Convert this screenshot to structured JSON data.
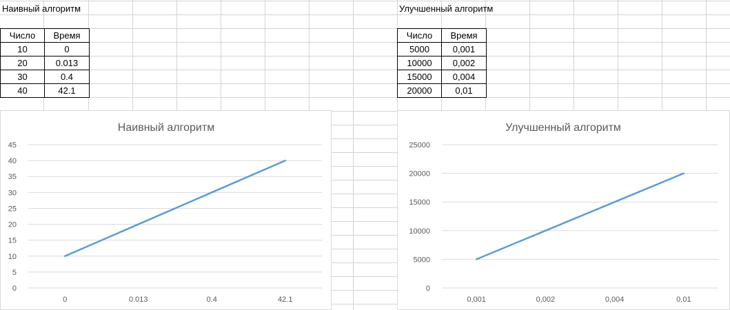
{
  "sheet": {
    "left_title": "Наивный алгоритм",
    "right_title": "Улучшенный алгоритм"
  },
  "tables": {
    "naive": {
      "headers": [
        "Число",
        "Время"
      ],
      "rows": [
        [
          "10",
          "0"
        ],
        [
          "20",
          "0.013"
        ],
        [
          "30",
          "0.4"
        ],
        [
          "40",
          "42.1"
        ]
      ]
    },
    "improved": {
      "headers": [
        "Число",
        "Время"
      ],
      "rows": [
        [
          "5000",
          "0,001"
        ],
        [
          "10000",
          "0,002"
        ],
        [
          "15000",
          "0,004"
        ],
        [
          "20000",
          "0,01"
        ]
      ]
    }
  },
  "colors": {
    "series": "#5B9BD5",
    "gridline": "#d9d9d9",
    "axis_text": "#595959",
    "cell_border": "#d4d4d4"
  },
  "chart_data": [
    {
      "type": "line",
      "title": "Наивный алгоритм",
      "categories": [
        "0",
        "0.013",
        "0.4",
        "42.1"
      ],
      "series": [
        {
          "values": [
            10,
            20,
            30,
            40
          ]
        }
      ],
      "yticks": [
        "0",
        "5",
        "10",
        "15",
        "20",
        "25",
        "30",
        "35",
        "40",
        "45"
      ],
      "ylim": [
        0,
        45
      ],
      "grid": true
    },
    {
      "type": "line",
      "title": "Улучшенный алгоритм",
      "categories": [
        "0,001",
        "0,002",
        "0,004",
        "0,01"
      ],
      "series": [
        {
          "values": [
            5000,
            10000,
            15000,
            20000
          ]
        }
      ],
      "yticks": [
        "0",
        "5000",
        "10000",
        "15000",
        "20000",
        "25000"
      ],
      "ylim": [
        0,
        25000
      ],
      "grid": true
    }
  ]
}
